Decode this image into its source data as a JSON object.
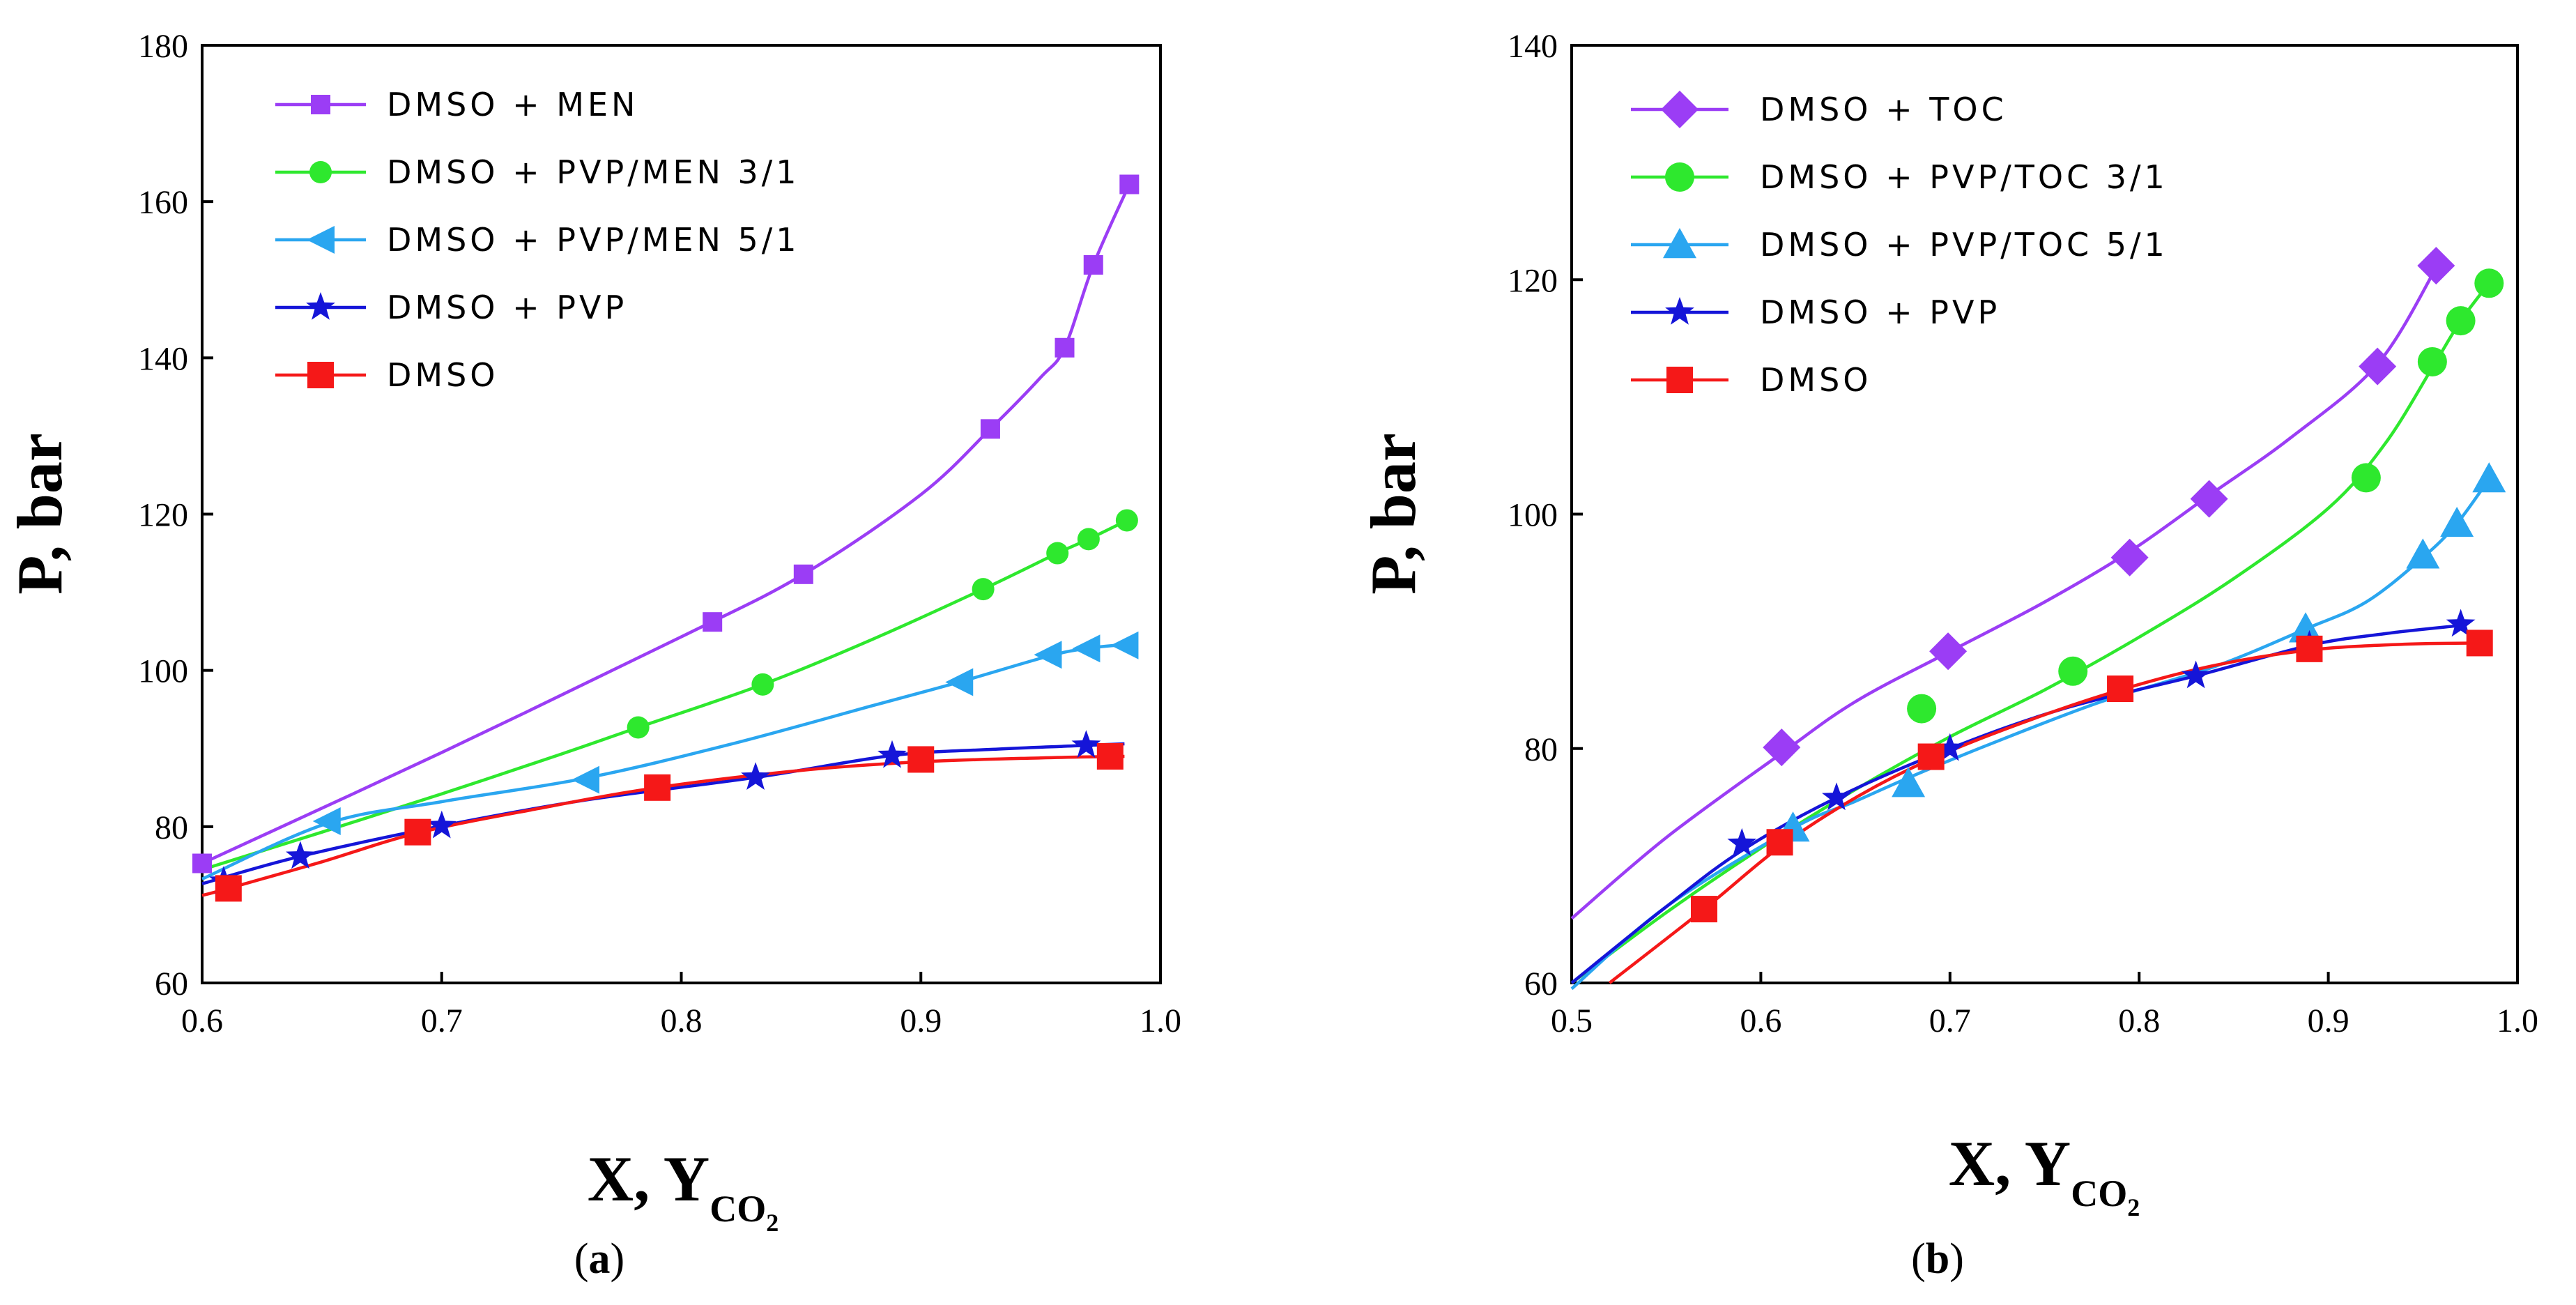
{
  "colors": {
    "purple": "#9b3df5",
    "green": "#2ee82e",
    "cyan": "#2aa6f0",
    "blue": "#1515d8",
    "red": "#f51818"
  },
  "captions": {
    "a_open": "(",
    "a_letter": "a",
    "a_close": ")",
    "b_open": "(",
    "b_letter": "b",
    "b_close": ")"
  },
  "chart_data": [
    {
      "id": "a",
      "type": "line",
      "title": "",
      "xlabel": "X, Y",
      "xlabel_sub": "CO",
      "xlabel_sub2": "2",
      "ylabel": "P, bar",
      "xlim": [
        0.6,
        1.0
      ],
      "ylim": [
        60,
        180
      ],
      "xticks": [
        "0.6",
        "0.7",
        "0.8",
        "0.9",
        "1.0"
      ],
      "xtick_values": [
        0.6,
        0.7,
        0.8,
        0.9,
        1.0
      ],
      "yticks": [
        "60",
        "80",
        "100",
        "120",
        "140",
        "160",
        "180"
      ],
      "ytick_values": [
        60,
        80,
        100,
        120,
        140,
        160,
        180
      ],
      "grid": false,
      "legend_position": "top-left",
      "series": [
        {
          "name": "DMSO + MEN",
          "color": "#9b3df5",
          "marker": "square-small",
          "points": [
            [
              0.6,
              75.3
            ],
            [
              0.813,
              106.2
            ],
            [
              0.851,
              112.3
            ],
            [
              0.929,
              130.9
            ],
            [
              0.96,
              141.3
            ],
            [
              0.972,
              151.9
            ],
            [
              0.987,
              162.2
            ]
          ],
          "curve": [
            [
              0.6,
              75.3
            ],
            [
              0.7,
              89.5
            ],
            [
              0.8,
              104.3
            ],
            [
              0.851,
              112.3
            ],
            [
              0.9,
              122.5
            ],
            [
              0.929,
              130.9
            ],
            [
              0.95,
              137.5
            ],
            [
              0.96,
              141.3
            ],
            [
              0.972,
              151.9
            ],
            [
              0.987,
              162.2
            ]
          ]
        },
        {
          "name": "DMSO + PVP/MEN 3/1",
          "color": "#2ee82e",
          "marker": "circle",
          "points": [
            [
              0.782,
              92.7
            ],
            [
              0.834,
              98.2
            ],
            [
              0.926,
              110.4
            ],
            [
              0.957,
              115
            ],
            [
              0.97,
              116.8
            ],
            [
              0.986,
              119.2
            ]
          ],
          "curve": [
            [
              0.6,
              74.5
            ],
            [
              0.65,
              79.3
            ],
            [
              0.7,
              84.2
            ],
            [
              0.75,
              89.3
            ],
            [
              0.782,
              92.7
            ],
            [
              0.834,
              98.2
            ],
            [
              0.88,
              104
            ],
            [
              0.926,
              110.4
            ],
            [
              0.957,
              115
            ],
            [
              0.97,
              116.8
            ],
            [
              0.986,
              119.2
            ]
          ]
        },
        {
          "name": "DMSO + PVP/MEN 5/1",
          "color": "#2aa6f0",
          "marker": "triangle-left",
          "points": [
            [
              0.652,
              80.7
            ],
            [
              0.76,
              86
            ],
            [
              0.916,
              98.5
            ],
            [
              0.953,
              102
            ],
            [
              0.969,
              102.8
            ],
            [
              0.985,
              103.2
            ]
          ],
          "curve": [
            [
              0.6,
              73.3
            ],
            [
              0.652,
              80.4
            ],
            [
              0.7,
              83.2
            ],
            [
              0.76,
              86.2
            ],
            [
              0.82,
              90.5
            ],
            [
              0.88,
              95.5
            ],
            [
              0.916,
              98.5
            ],
            [
              0.953,
              101.8
            ],
            [
              0.969,
              102.8
            ],
            [
              0.985,
              103.3
            ]
          ]
        },
        {
          "name": "DMSO + PVP",
          "color": "#1515d8",
          "marker": "star",
          "points": [
            [
              0.609,
              73
            ],
            [
              0.641,
              76.2
            ],
            [
              0.7,
              80.1
            ],
            [
              0.831,
              86.3
            ],
            [
              0.888,
              89.1
            ],
            [
              0.969,
              90.4
            ]
          ],
          "curve": [
            [
              0.6,
              72.7
            ],
            [
              0.641,
              76.2
            ],
            [
              0.7,
              80.1
            ],
            [
              0.76,
              83.4
            ],
            [
              0.831,
              86.3
            ],
            [
              0.888,
              89.1
            ],
            [
              0.93,
              89.9
            ],
            [
              0.969,
              90.4
            ],
            [
              0.985,
              90.6
            ]
          ]
        },
        {
          "name": "DMSO",
          "color": "#f51818",
          "marker": "square",
          "points": [
            [
              0.611,
              72.1
            ],
            [
              0.69,
              79.3
            ],
            [
              0.79,
              85
            ],
            [
              0.9,
              88.6
            ],
            [
              0.979,
              89
            ]
          ],
          "curve": [
            [
              0.6,
              71.2
            ],
            [
              0.611,
              72.1
            ],
            [
              0.65,
              75.5
            ],
            [
              0.69,
              79.2
            ],
            [
              0.74,
              82.3
            ],
            [
              0.79,
              85
            ],
            [
              0.85,
              87.2
            ],
            [
              0.9,
              88.3
            ],
            [
              0.95,
              88.8
            ],
            [
              0.985,
              89
            ]
          ]
        }
      ]
    },
    {
      "id": "b",
      "type": "line",
      "title": "",
      "xlabel": "X, Y",
      "xlabel_sub": "CO",
      "xlabel_sub2": "2",
      "ylabel": "P, bar",
      "xlim": [
        0.5,
        1.0
      ],
      "ylim": [
        60,
        140
      ],
      "xticks": [
        "0.5",
        "0.6",
        "0.7",
        "0.8",
        "0.9",
        "1.0"
      ],
      "xtick_values": [
        0.5,
        0.6,
        0.7,
        0.8,
        0.9,
        1.0
      ],
      "yticks": [
        "60",
        "80",
        "100",
        "120",
        "140"
      ],
      "ytick_values": [
        60,
        80,
        100,
        120,
        140
      ],
      "grid": false,
      "legend_position": "top-left",
      "series": [
        {
          "name": "DMSO + TOC",
          "color": "#9b3df5",
          "marker": "diamond",
          "points": [
            [
              0.611,
              80.1
            ],
            [
              0.699,
              88.3
            ],
            [
              0.795,
              96.3
            ],
            [
              0.837,
              101.3
            ],
            [
              0.926,
              112.6
            ],
            [
              0.957,
              121.2
            ]
          ],
          "curve": [
            [
              0.5,
              65.5
            ],
            [
              0.55,
              72.4
            ],
            [
              0.611,
              79.6
            ],
            [
              0.65,
              84
            ],
            [
              0.699,
              88.2
            ],
            [
              0.75,
              92.5
            ],
            [
              0.795,
              96.8
            ],
            [
              0.837,
              101.6
            ],
            [
              0.88,
              106.5
            ],
            [
              0.926,
              112.8
            ],
            [
              0.957,
              121
            ]
          ]
        },
        {
          "name": "DMSO + PVP/TOC 3/1",
          "color": "#2ee82e",
          "marker": "circle-large",
          "points": [
            [
              0.685,
              83.4
            ],
            [
              0.765,
              86.6
            ],
            [
              0.92,
              103.1
            ],
            [
              0.955,
              113
            ],
            [
              0.97,
              116.5
            ],
            [
              0.985,
              119.7
            ]
          ],
          "curve": [
            [
              0.5,
              60
            ],
            [
              0.55,
              66
            ],
            [
              0.6,
              71.5
            ],
            [
              0.65,
              76.5
            ],
            [
              0.7,
              81
            ],
            [
              0.75,
              85
            ],
            [
              0.8,
              89.5
            ],
            [
              0.85,
              94.5
            ],
            [
              0.9,
              100.5
            ],
            [
              0.93,
              106
            ],
            [
              0.955,
              112.5
            ],
            [
              0.97,
              116.5
            ],
            [
              0.985,
              119.7
            ]
          ]
        },
        {
          "name": "DMSO + PVP/TOC 5/1",
          "color": "#2aa6f0",
          "marker": "triangle-up",
          "points": [
            [
              0.617,
              73.2
            ],
            [
              0.678,
              77
            ],
            [
              0.888,
              90.2
            ],
            [
              0.95,
              96.5
            ],
            [
              0.968,
              99.2
            ],
            [
              0.985,
              103
            ]
          ],
          "curve": [
            [
              0.5,
              59.5
            ],
            [
              0.55,
              66.5
            ],
            [
              0.617,
              73.2
            ],
            [
              0.65,
              75.5
            ],
            [
              0.678,
              77.5
            ],
            [
              0.72,
              80.3
            ],
            [
              0.78,
              84
            ],
            [
              0.84,
              87
            ],
            [
              0.888,
              90.2
            ],
            [
              0.92,
              92.5
            ],
            [
              0.95,
              96.3
            ],
            [
              0.968,
              99.2
            ],
            [
              0.985,
              103
            ]
          ]
        },
        {
          "name": "DMSO + PVP",
          "color": "#1515d8",
          "marker": "star",
          "points": [
            [
              0.59,
              71.9
            ],
            [
              0.64,
              75.8
            ],
            [
              0.7,
              80
            ],
            [
              0.83,
              86.2
            ],
            [
              0.89,
              88.8
            ],
            [
              0.97,
              90.6
            ]
          ],
          "curve": [
            [
              0.5,
              60
            ],
            [
              0.55,
              66.5
            ],
            [
              0.59,
              71.3
            ],
            [
              0.64,
              75.8
            ],
            [
              0.7,
              80
            ],
            [
              0.76,
              83.4
            ],
            [
              0.83,
              86.2
            ],
            [
              0.89,
              88.8
            ],
            [
              0.93,
              89.8
            ],
            [
              0.97,
              90.5
            ]
          ]
        },
        {
          "name": "DMSO",
          "color": "#f51818",
          "marker": "square",
          "points": [
            [
              0.57,
              66.3
            ],
            [
              0.61,
              72
            ],
            [
              0.69,
              79.3
            ],
            [
              0.79,
              85.1
            ],
            [
              0.89,
              88.5
            ],
            [
              0.98,
              89
            ]
          ],
          "curve": [
            [
              0.52,
              60
            ],
            [
              0.57,
              66.3
            ],
            [
              0.61,
              71.6
            ],
            [
              0.65,
              75.8
            ],
            [
              0.69,
              79.1
            ],
            [
              0.74,
              82.3
            ],
            [
              0.79,
              85
            ],
            [
              0.84,
              87.1
            ],
            [
              0.89,
              88.4
            ],
            [
              0.94,
              88.9
            ],
            [
              0.98,
              89
            ]
          ]
        }
      ]
    }
  ]
}
